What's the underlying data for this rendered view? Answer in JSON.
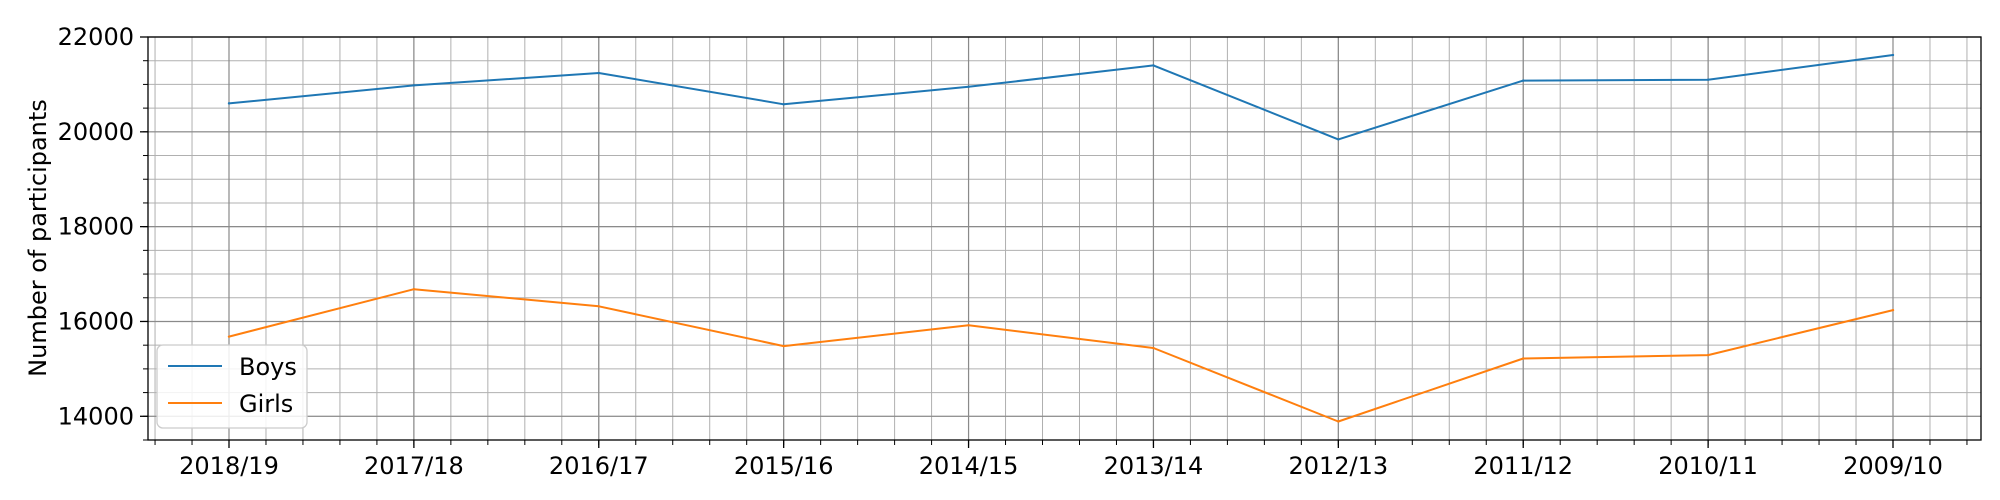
{
  "chart_data": {
    "type": "line",
    "categories": [
      "2018/19",
      "2017/18",
      "2016/17",
      "2015/16",
      "2014/15",
      "2013/14",
      "2012/13",
      "2011/12",
      "2010/11",
      "2009/10"
    ],
    "series": [
      {
        "name": "Boys",
        "color": "#1f77b4",
        "values": [
          20600,
          20980,
          21240,
          20580,
          20950,
          21400,
          19840,
          21080,
          21100,
          21620
        ]
      },
      {
        "name": "Girls",
        "color": "#ff7f0e",
        "values": [
          15680,
          16680,
          16320,
          15480,
          15920,
          15440,
          13890,
          15220,
          15290,
          16240
        ]
      }
    ],
    "xlabel": "",
    "ylabel": "Number of participants",
    "ylim": [
      13500,
      22000
    ],
    "yticks": [
      14000,
      16000,
      18000,
      20000,
      22000
    ],
    "ytick_labels": [
      "14000",
      "16000",
      "18000",
      "20000",
      "22000"
    ],
    "grid": true,
    "minor_grid": true,
    "legend_position": "lower-left"
  }
}
